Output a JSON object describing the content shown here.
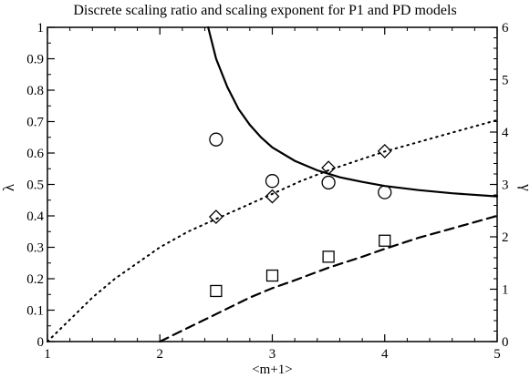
{
  "chart_data": {
    "type": "line",
    "title": "Discrete scaling ratio and scaling exponent for P1 and PD models",
    "xlabel": "<m+1>",
    "ylabel_left": "λ",
    "ylabel_right": "γ",
    "xlim": [
      1,
      5
    ],
    "ylim_left": [
      0,
      1
    ],
    "ylim_right": [
      0,
      6
    ],
    "grid": false,
    "xticks": [
      "1",
      "2",
      "3",
      "4",
      "5"
    ],
    "yticks_left": [
      "0",
      "0.1",
      "0.2",
      "0.3",
      "0.4",
      "0.5",
      "0.6",
      "0.7",
      "0.8",
      "0.9",
      "1"
    ],
    "yticks_right": [
      "0",
      "1",
      "2",
      "3",
      "4",
      "5",
      "6"
    ],
    "curves": [
      {
        "style": "solid",
        "axis": "left",
        "x": [
          2.43,
          2.5,
          2.6,
          2.7,
          2.8,
          2.9,
          3.0,
          3.2,
          3.4,
          3.6,
          3.8,
          4.0,
          4.3,
          4.6,
          5.0
        ],
        "y": [
          1.0,
          0.9,
          0.81,
          0.74,
          0.69,
          0.65,
          0.618,
          0.575,
          0.545,
          0.523,
          0.508,
          0.495,
          0.482,
          0.472,
          0.462
        ]
      },
      {
        "style": "dotted",
        "axis": "left",
        "x": [
          1.0,
          1.2,
          1.4,
          1.6,
          1.8,
          2.0,
          2.25,
          2.5,
          2.75,
          3.0,
          3.25,
          3.5,
          3.75,
          4.0,
          4.25,
          4.5,
          4.75,
          5.0
        ],
        "y": [
          0.0,
          0.07,
          0.14,
          0.2,
          0.25,
          0.3,
          0.35,
          0.39,
          0.43,
          0.47,
          0.51,
          0.545,
          0.575,
          0.605,
          0.63,
          0.655,
          0.68,
          0.705
        ]
      },
      {
        "style": "dashed",
        "axis": "left",
        "x": [
          2.0,
          2.2,
          2.4,
          2.6,
          2.8,
          3.0,
          3.2,
          3.5,
          3.8,
          4.0,
          4.3,
          4.6,
          5.0
        ],
        "y": [
          0.0,
          0.035,
          0.07,
          0.105,
          0.14,
          0.17,
          0.195,
          0.235,
          0.27,
          0.295,
          0.33,
          0.36,
          0.4
        ]
      }
    ],
    "markers": [
      {
        "shape": "circle",
        "x": [
          2.5,
          3.0,
          3.5,
          4.0
        ],
        "y": [
          0.643,
          0.511,
          0.506,
          0.475
        ]
      },
      {
        "shape": "diamond",
        "x": [
          2.5,
          3.0,
          3.5,
          4.0
        ],
        "y": [
          0.397,
          0.462,
          0.553,
          0.606
        ]
      },
      {
        "shape": "square",
        "x": [
          2.5,
          3.0,
          3.5,
          4.0
        ],
        "y": [
          0.161,
          0.21,
          0.27,
          0.321
        ]
      }
    ]
  }
}
